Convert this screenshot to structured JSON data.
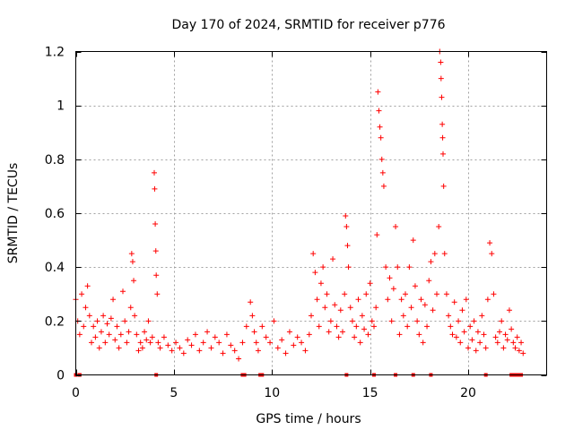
{
  "chart_data": {
    "type": "scatter",
    "title": "Day 170 of 2024, SRMTID for receiver p776",
    "xlabel": "GPS time / hours",
    "ylabel": "SRMTID / TECUs",
    "xlim": [
      0,
      24
    ],
    "ylim": [
      0,
      1.2
    ],
    "xticks": [
      0,
      5,
      10,
      15,
      20
    ],
    "yticks": [
      0,
      0.2,
      0.4,
      0.6,
      0.8,
      1.0,
      1.2
    ],
    "xtick_labels": [
      "0",
      "5",
      "10",
      "15",
      "20"
    ],
    "ytick_labels": [
      "0",
      "0.2",
      "0.4",
      "0.6",
      "0.8",
      "1",
      "1.2"
    ],
    "grid": true,
    "marker": "+",
    "color": "#ff0000",
    "series": [
      {
        "name": "SRMTID",
        "x": [
          0.0,
          0.1,
          0.2,
          0.3,
          0.4,
          0.5,
          0.6,
          0.7,
          0.8,
          0.9,
          1.0,
          1.1,
          1.2,
          1.3,
          1.4,
          1.5,
          1.6,
          1.7,
          1.8,
          1.9,
          2.0,
          2.1,
          2.2,
          2.3,
          2.4,
          2.5,
          2.6,
          2.7,
          2.8,
          2.85,
          2.9,
          2.95,
          3.0,
          3.1,
          3.2,
          3.3,
          3.4,
          3.5,
          3.6,
          3.7,
          3.8,
          3.9,
          4.0,
          4.02,
          4.05,
          4.08,
          4.1,
          4.15,
          4.2,
          4.3,
          4.5,
          4.7,
          4.9,
          5.1,
          5.3,
          5.5,
          5.7,
          5.9,
          6.1,
          6.3,
          6.5,
          6.7,
          6.9,
          7.1,
          7.3,
          7.5,
          7.7,
          7.9,
          8.1,
          8.3,
          8.5,
          8.7,
          8.9,
          9.0,
          9.1,
          9.2,
          9.3,
          9.5,
          9.7,
          9.9,
          10.1,
          10.3,
          10.5,
          10.7,
          10.9,
          11.1,
          11.3,
          11.5,
          11.7,
          11.9,
          12.0,
          12.1,
          12.2,
          12.3,
          12.4,
          12.5,
          12.6,
          12.7,
          12.8,
          12.9,
          13.0,
          13.1,
          13.2,
          13.3,
          13.4,
          13.5,
          13.6,
          13.7,
          13.75,
          13.8,
          13.85,
          13.9,
          14.0,
          14.1,
          14.2,
          14.3,
          14.4,
          14.5,
          14.6,
          14.7,
          14.8,
          14.9,
          15.0,
          15.1,
          15.2,
          15.3,
          15.35,
          15.4,
          15.45,
          15.5,
          15.55,
          15.6,
          15.65,
          15.7,
          15.8,
          15.9,
          16.0,
          16.1,
          16.2,
          16.3,
          16.4,
          16.5,
          16.6,
          16.7,
          16.8,
          16.9,
          17.0,
          17.1,
          17.2,
          17.3,
          17.4,
          17.5,
          17.6,
          17.7,
          17.8,
          17.9,
          18.0,
          18.1,
          18.2,
          18.3,
          18.4,
          18.5,
          18.55,
          18.6,
          18.62,
          18.65,
          18.68,
          18.7,
          18.72,
          18.75,
          18.8,
          18.9,
          19.0,
          19.1,
          19.2,
          19.3,
          19.4,
          19.5,
          19.6,
          19.7,
          19.8,
          19.9,
          20.0,
          20.1,
          20.2,
          20.3,
          20.4,
          20.5,
          20.6,
          20.7,
          20.8,
          20.9,
          21.0,
          21.1,
          21.2,
          21.3,
          21.4,
          21.5,
          21.6,
          21.7,
          21.8,
          21.9,
          22.0,
          22.1,
          22.2,
          22.3,
          22.4,
          22.5,
          22.6,
          22.7,
          22.8
        ],
        "y": [
          0.28,
          0.2,
          0.15,
          0.3,
          0.18,
          0.25,
          0.33,
          0.22,
          0.12,
          0.18,
          0.14,
          0.2,
          0.1,
          0.16,
          0.22,
          0.12,
          0.19,
          0.15,
          0.21,
          0.28,
          0.13,
          0.18,
          0.1,
          0.15,
          0.31,
          0.2,
          0.12,
          0.16,
          0.25,
          0.45,
          0.42,
          0.35,
          0.22,
          0.15,
          0.09,
          0.12,
          0.1,
          0.16,
          0.13,
          0.2,
          0.12,
          0.14,
          0.75,
          0.69,
          0.56,
          0.46,
          0.37,
          0.3,
          0.12,
          0.1,
          0.14,
          0.11,
          0.09,
          0.12,
          0.1,
          0.08,
          0.13,
          0.11,
          0.15,
          0.09,
          0.12,
          0.16,
          0.1,
          0.14,
          0.12,
          0.08,
          0.15,
          0.11,
          0.09,
          0.06,
          0.12,
          0.18,
          0.27,
          0.22,
          0.16,
          0.12,
          0.09,
          0.18,
          0.14,
          0.12,
          0.2,
          0.1,
          0.13,
          0.08,
          0.16,
          0.11,
          0.14,
          0.12,
          0.09,
          0.15,
          0.22,
          0.45,
          0.38,
          0.28,
          0.18,
          0.34,
          0.4,
          0.25,
          0.3,
          0.16,
          0.2,
          0.43,
          0.26,
          0.18,
          0.14,
          0.24,
          0.16,
          0.3,
          0.59,
          0.55,
          0.48,
          0.4,
          0.25,
          0.2,
          0.14,
          0.18,
          0.28,
          0.12,
          0.22,
          0.17,
          0.3,
          0.15,
          0.34,
          0.2,
          0.18,
          0.25,
          0.52,
          1.05,
          0.98,
          0.92,
          0.88,
          0.8,
          0.75,
          0.7,
          0.4,
          0.28,
          0.36,
          0.2,
          0.32,
          0.55,
          0.4,
          0.15,
          0.28,
          0.22,
          0.3,
          0.18,
          0.4,
          0.25,
          0.5,
          0.33,
          0.2,
          0.15,
          0.28,
          0.12,
          0.26,
          0.18,
          0.35,
          0.42,
          0.24,
          0.45,
          0.3,
          0.55,
          1.2,
          1.16,
          1.1,
          1.03,
          0.93,
          0.88,
          0.82,
          0.7,
          0.45,
          0.3,
          0.22,
          0.18,
          0.15,
          0.27,
          0.14,
          0.2,
          0.12,
          0.24,
          0.16,
          0.28,
          0.1,
          0.18,
          0.13,
          0.2,
          0.09,
          0.16,
          0.12,
          0.22,
          0.15,
          0.1,
          0.28,
          0.49,
          0.45,
          0.3,
          0.14,
          0.12,
          0.16,
          0.2,
          0.1,
          0.15,
          0.13,
          0.24,
          0.17,
          0.12,
          0.1,
          0.14,
          0.09,
          0.12,
          0.08
        ]
      }
    ],
    "zero_points_x": [
      0.0,
      0.2,
      4.1,
      8.5,
      8.6,
      9.4,
      9.5,
      13.8,
      15.2,
      16.3,
      17.2,
      18.1,
      20.9,
      22.2,
      22.3,
      22.4,
      22.5,
      22.6,
      22.7
    ]
  }
}
